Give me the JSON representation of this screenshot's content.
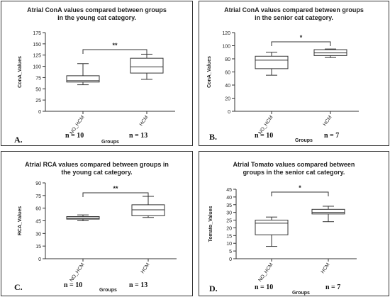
{
  "chart_data": [
    {
      "type": "box",
      "panel_label": "A.",
      "title_line1": "Atrial ConA values compared between groups",
      "title_line2": "in the young cat category.",
      "ylabel": "ConA_Values",
      "xlabel": "Groups",
      "ylim": [
        0,
        175
      ],
      "yticks": [
        0,
        25,
        50,
        75,
        100,
        125,
        150,
        175
      ],
      "categories": [
        "NO_HCM",
        "HCM"
      ],
      "boxes": [
        {
          "min": 59,
          "q1": 65,
          "median": 68,
          "q3": 79,
          "max": 106
        },
        {
          "min": 71,
          "q1": 85,
          "median": 99,
          "q3": 118,
          "max": 127
        }
      ],
      "significance": "**",
      "n_labels": [
        "n = 10",
        "n = 13"
      ]
    },
    {
      "type": "box",
      "panel_label": "B.",
      "title_line1": "Atrial ConA values compared between groups",
      "title_line2": "in the senior cat category.",
      "ylabel": "ConA_Values",
      "xlabel": "Groups",
      "ylim": [
        0,
        120
      ],
      "yticks": [
        0,
        20,
        40,
        60,
        80,
        100,
        120
      ],
      "categories": [
        "NO_HCM",
        "HCM"
      ],
      "boxes": [
        {
          "min": 55,
          "q1": 65,
          "median": 78,
          "q3": 84,
          "max": 90
        },
        {
          "min": 82,
          "q1": 85,
          "median": 89,
          "q3": 94,
          "max": 95
        }
      ],
      "significance": "*",
      "n_labels": [
        "n = 10",
        "n = 7"
      ]
    },
    {
      "type": "box",
      "panel_label": "C.",
      "title_line1": "Atrial RCA values compared between groups in",
      "title_line2": "the young cat category.",
      "ylabel": "RCA_Values",
      "xlabel": "Groups",
      "ylim": [
        0,
        90
      ],
      "yticks": [
        0,
        15,
        30,
        45,
        60,
        75,
        90
      ],
      "categories": [
        "NO_HCM",
        "HCM"
      ],
      "boxes": [
        {
          "min": 45,
          "q1": 47,
          "median": 48,
          "q3": 50,
          "max": 52
        },
        {
          "min": 49,
          "q1": 51,
          "median": 58,
          "q3": 64,
          "max": 74
        }
      ],
      "significance": "**",
      "n_labels": [
        "n = 10",
        "n = 13"
      ]
    },
    {
      "type": "box",
      "panel_label": "D.",
      "title_line1": "Atrial Tomato values compared between",
      "title_line2": "groups in the senior cat category.",
      "ylabel": "Tomato_Values",
      "xlabel": "Groups",
      "ylim": [
        0,
        45
      ],
      "yticks": [
        0,
        5,
        10,
        15,
        20,
        25,
        30,
        35,
        40,
        45
      ],
      "categories": [
        "NO_HCM",
        "HCM"
      ],
      "boxes": [
        {
          "min": 8,
          "q1": 15.5,
          "median": 23,
          "q3": 25,
          "max": 27
        },
        {
          "min": 24,
          "q1": 29,
          "median": 30,
          "q3": 32,
          "max": 34
        }
      ],
      "significance": "*",
      "n_labels": [
        "n = 10",
        "n = 7"
      ]
    }
  ]
}
